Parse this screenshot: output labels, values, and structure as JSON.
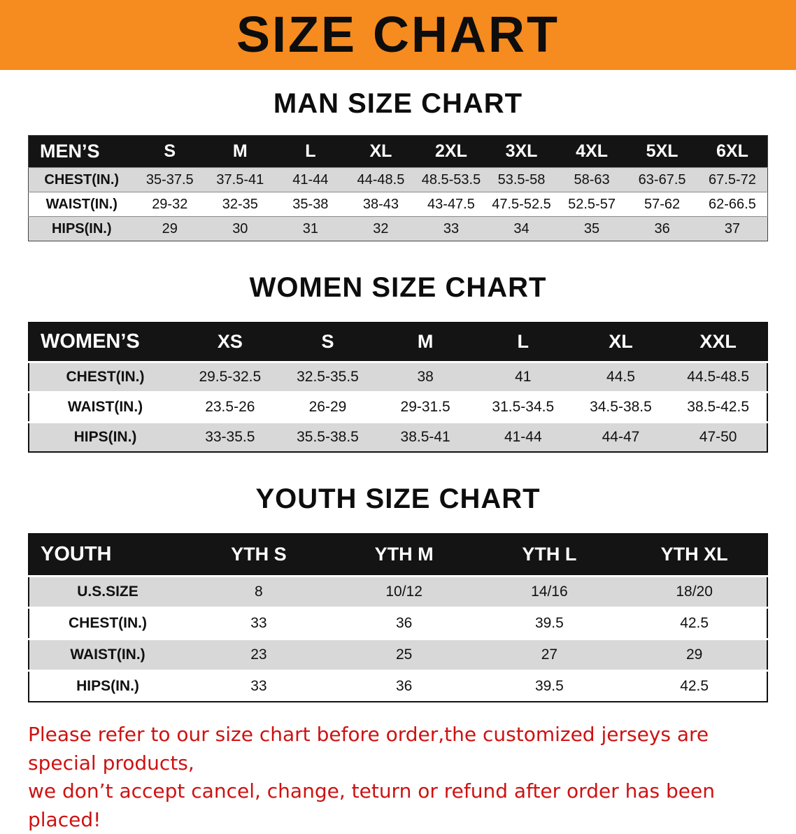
{
  "banner": {
    "title": "SIZE CHART"
  },
  "colors": {
    "banner_bg": "#f68b1f",
    "header_row_bg": "#141414",
    "stripe_row_bg": "#d8d8d8",
    "disclaimer_red": "#ce1212"
  },
  "chart_data": [
    {
      "type": "table",
      "title": "MAN SIZE CHART",
      "columns": [
        "MEN’S",
        "S",
        "M",
        "L",
        "XL",
        "2XL",
        "3XL",
        "4XL",
        "5XL",
        "6XL"
      ],
      "rows": [
        [
          "CHEST(IN.)",
          "35-37.5",
          "37.5-41",
          "41-44",
          "44-48.5",
          "48.5-53.5",
          "53.5-58",
          "58-63",
          "63-67.5",
          "67.5-72"
        ],
        [
          "WAIST(IN.)",
          "29-32",
          "32-35",
          "35-38",
          "38-43",
          "43-47.5",
          "47.5-52.5",
          "52.5-57",
          "57-62",
          "62-66.5"
        ],
        [
          "HIPS(IN.)",
          "29",
          "30",
          "31",
          "32",
          "33",
          "34",
          "35",
          "36",
          "37"
        ]
      ]
    },
    {
      "type": "table",
      "title": "WOMEN SIZE CHART",
      "columns": [
        "WOMEN’S",
        "XS",
        "S",
        "M",
        "L",
        "XL",
        "XXL"
      ],
      "rows": [
        [
          "CHEST(IN.)",
          "29.5-32.5",
          "32.5-35.5",
          "38",
          "41",
          "44.5",
          "44.5-48.5"
        ],
        [
          "WAIST(IN.)",
          "23.5-26",
          "26-29",
          "29-31.5",
          "31.5-34.5",
          "34.5-38.5",
          "38.5-42.5"
        ],
        [
          "HIPS(IN.)",
          "33-35.5",
          "35.5-38.5",
          "38.5-41",
          "41-44",
          "44-47",
          "47-50"
        ]
      ]
    },
    {
      "type": "table",
      "title": "YOUTH SIZE CHART",
      "columns": [
        "YOUTH",
        "YTH S",
        "YTH M",
        "YTH L",
        "YTH XL"
      ],
      "rows": [
        [
          "U.S.SIZE",
          "8",
          "10/12",
          "14/16",
          "18/20"
        ],
        [
          "CHEST(IN.)",
          "33",
          "36",
          "39.5",
          "42.5"
        ],
        [
          "WAIST(IN.)",
          "23",
          "25",
          "27",
          "29"
        ],
        [
          "HIPS(IN.)",
          "33",
          "36",
          "39.5",
          "42.5"
        ]
      ]
    }
  ],
  "disclaimer": {
    "line1": "Please refer to our size chart before order,the customized jerseys are special products,",
    "line2": "we don’t accept cancel, change, teturn or refund after order has been placed!"
  }
}
